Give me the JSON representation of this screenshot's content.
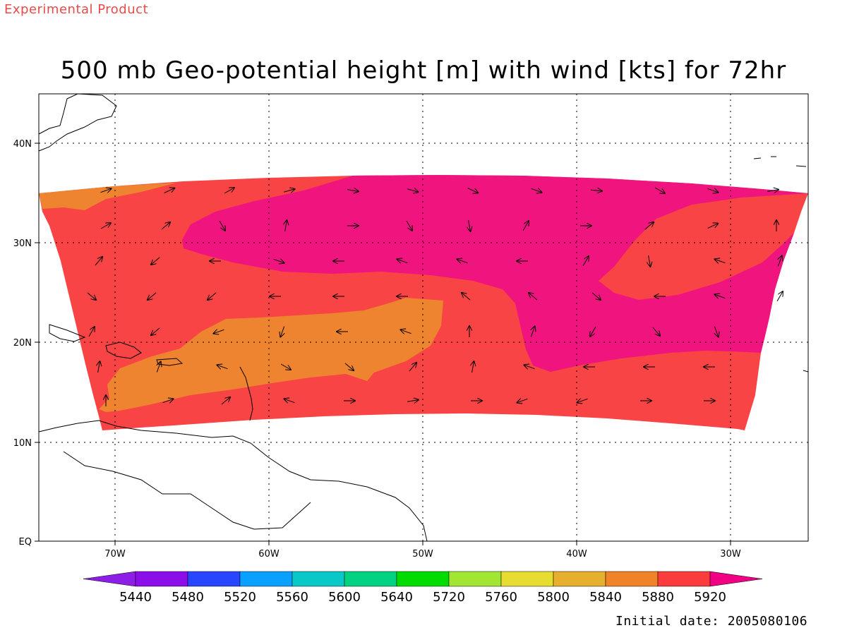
{
  "header": {
    "experimental_label": "Experimental Product",
    "title": "500 mb Geo-potential height [m] with wind [kts] for 72hr"
  },
  "footer": {
    "initial_date_text": "Initial date: 2005080106"
  },
  "map": {
    "lon_range": [
      -75,
      -25
    ],
    "lat_range": [
      0,
      45
    ],
    "lon_ticks": [
      {
        "value": -70,
        "label": "70W"
      },
      {
        "value": -60,
        "label": "60W"
      },
      {
        "value": -50,
        "label": "50W"
      },
      {
        "value": -40,
        "label": "40W"
      },
      {
        "value": -30,
        "label": "30W"
      }
    ],
    "lat_ticks": [
      {
        "value": 0,
        "label": "EQ"
      },
      {
        "value": 10,
        "label": "10N"
      },
      {
        "value": 20,
        "label": "20N"
      },
      {
        "value": 30,
        "label": "30N"
      },
      {
        "value": 40,
        "label": "40N"
      }
    ],
    "colors": {
      "5840": "#e3aa2e",
      "5880": "#ee8430",
      "5920": "#f84444",
      "above": "#f0147e"
    }
  },
  "colorbar": {
    "levels": [
      "5440",
      "5480",
      "5520",
      "5560",
      "5600",
      "5640",
      "5720",
      "5760",
      "5800",
      "5840",
      "5880",
      "5920"
    ],
    "colors": [
      "#8c1ee6",
      "#8c0ee8",
      "#2846ff",
      "#0aa0ff",
      "#0ac8c8",
      "#00d282",
      "#00dc00",
      "#a0e632",
      "#e6dc32",
      "#e6af2d",
      "#f08228",
      "#fa3c3c",
      "#f00082"
    ]
  }
}
